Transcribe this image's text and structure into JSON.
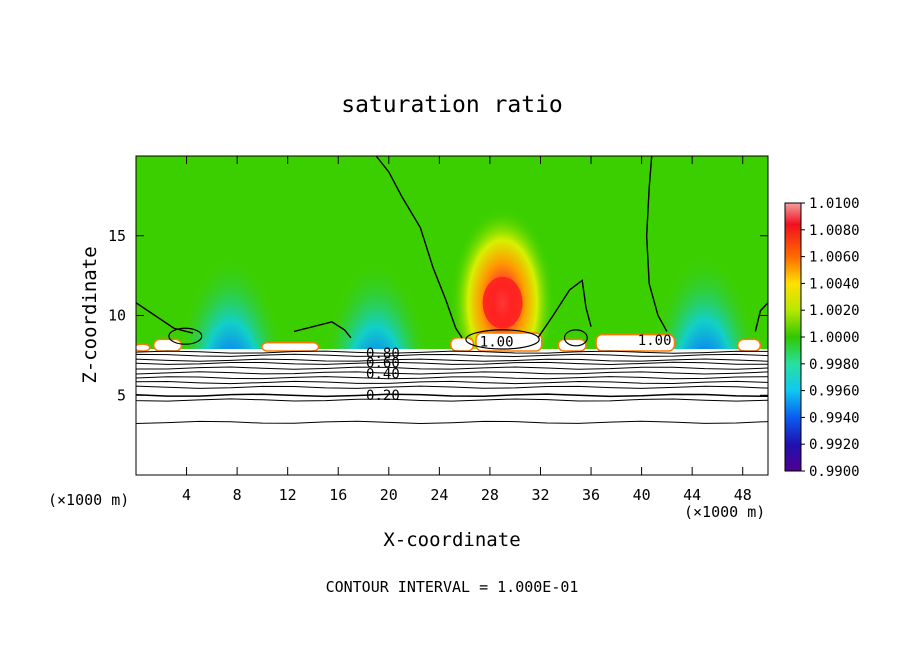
{
  "chart_data": {
    "type": "contour",
    "title": "saturation ratio",
    "xlabel": "X-coordinate",
    "ylabel": "Z-coordinate",
    "x_unit_left": "(×1000 m)",
    "x_unit_right": "(×1000 m)",
    "xlim": [
      0,
      50
    ],
    "ylim": [
      0,
      20
    ],
    "x_ticks": [
      4,
      8,
      12,
      16,
      20,
      24,
      28,
      32,
      36,
      40,
      44,
      48
    ],
    "y_ticks": [
      5,
      10,
      15
    ],
    "colorbar": {
      "min": 0.99,
      "max": 1.01,
      "labels": [
        "1.0100",
        "1.0080",
        "1.0060",
        "1.0040",
        "1.0020",
        "1.0000",
        "0.9980",
        "0.9960",
        "0.9940",
        "0.9920",
        "0.9900"
      ]
    },
    "contour_labels": [
      "0.80",
      "0.60",
      "0.40",
      "0.20",
      "1.00",
      "1.00"
    ],
    "annotation": "CONTOUR INTERVAL = 1.000E-01",
    "features": [
      {
        "name": "supersaturated-core",
        "x": 29,
        "z": 10.8,
        "peak": 1.01
      },
      {
        "name": "subsaturated-minimum-left",
        "x": 7.5,
        "z": 8.2,
        "min": 0.994
      },
      {
        "name": "subsaturated-minimum-middle",
        "x": 19,
        "z": 7.9,
        "min": 0.996
      },
      {
        "name": "subsaturated-minimum-right",
        "x": 45,
        "z": 8.3,
        "min": 0.994
      }
    ]
  }
}
